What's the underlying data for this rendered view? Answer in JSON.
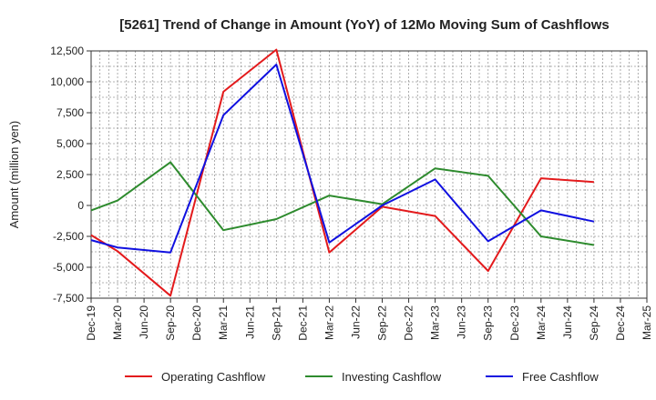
{
  "chart_data": {
    "type": "line",
    "title": "[5261]  Trend of Change in Amount (YoY) of 12Mo Moving Sum of Cashflows",
    "ylabel": "Amount (million yen)",
    "xlabel": "",
    "ylim": [
      -7500,
      12500
    ],
    "y_ticks": [
      12500,
      10000,
      7500,
      5000,
      2500,
      0,
      -2500,
      -5000,
      -7500
    ],
    "y_tick_labels": [
      "12,500",
      "10,000",
      "7,500",
      "5,000",
      "2,500",
      "0",
      "-2,500",
      "-5,000",
      "-7,500"
    ],
    "categories": [
      "Dec-19",
      "Mar-20",
      "Jun-20",
      "Sep-20",
      "Dec-20",
      "Mar-21",
      "Jun-21",
      "Sep-21",
      "Dec-21",
      "Mar-22",
      "Jun-22",
      "Sep-22",
      "Dec-22",
      "Mar-23",
      "Jun-23",
      "Sep-23",
      "Dec-23",
      "Mar-24",
      "Jun-24",
      "Sep-24",
      "Dec-24",
      "Mar-25"
    ],
    "grid": true,
    "legend_position": "bottom",
    "series": [
      {
        "name": "Operating Cashflow",
        "color": "#e31a1c",
        "values": [
          -2400,
          -3700,
          null,
          -7300,
          null,
          9200,
          null,
          12600,
          null,
          -3800,
          null,
          -100,
          null,
          -850,
          null,
          -5300,
          null,
          2200,
          null,
          1900,
          null,
          null
        ]
      },
      {
        "name": "Investing Cashflow",
        "color": "#2e8b2e",
        "values": [
          -400,
          400,
          null,
          3500,
          null,
          -2000,
          null,
          -1100,
          null,
          800,
          null,
          100,
          null,
          3000,
          null,
          2400,
          null,
          -2500,
          null,
          -3200,
          null,
          null
        ]
      },
      {
        "name": "Free Cashflow",
        "color": "#1010e0",
        "values": [
          -2800,
          -3400,
          null,
          -3800,
          null,
          7300,
          null,
          11400,
          null,
          -3000,
          null,
          0,
          null,
          2100,
          null,
          -2900,
          null,
          -400,
          null,
          -1300,
          null,
          null
        ]
      }
    ]
  }
}
